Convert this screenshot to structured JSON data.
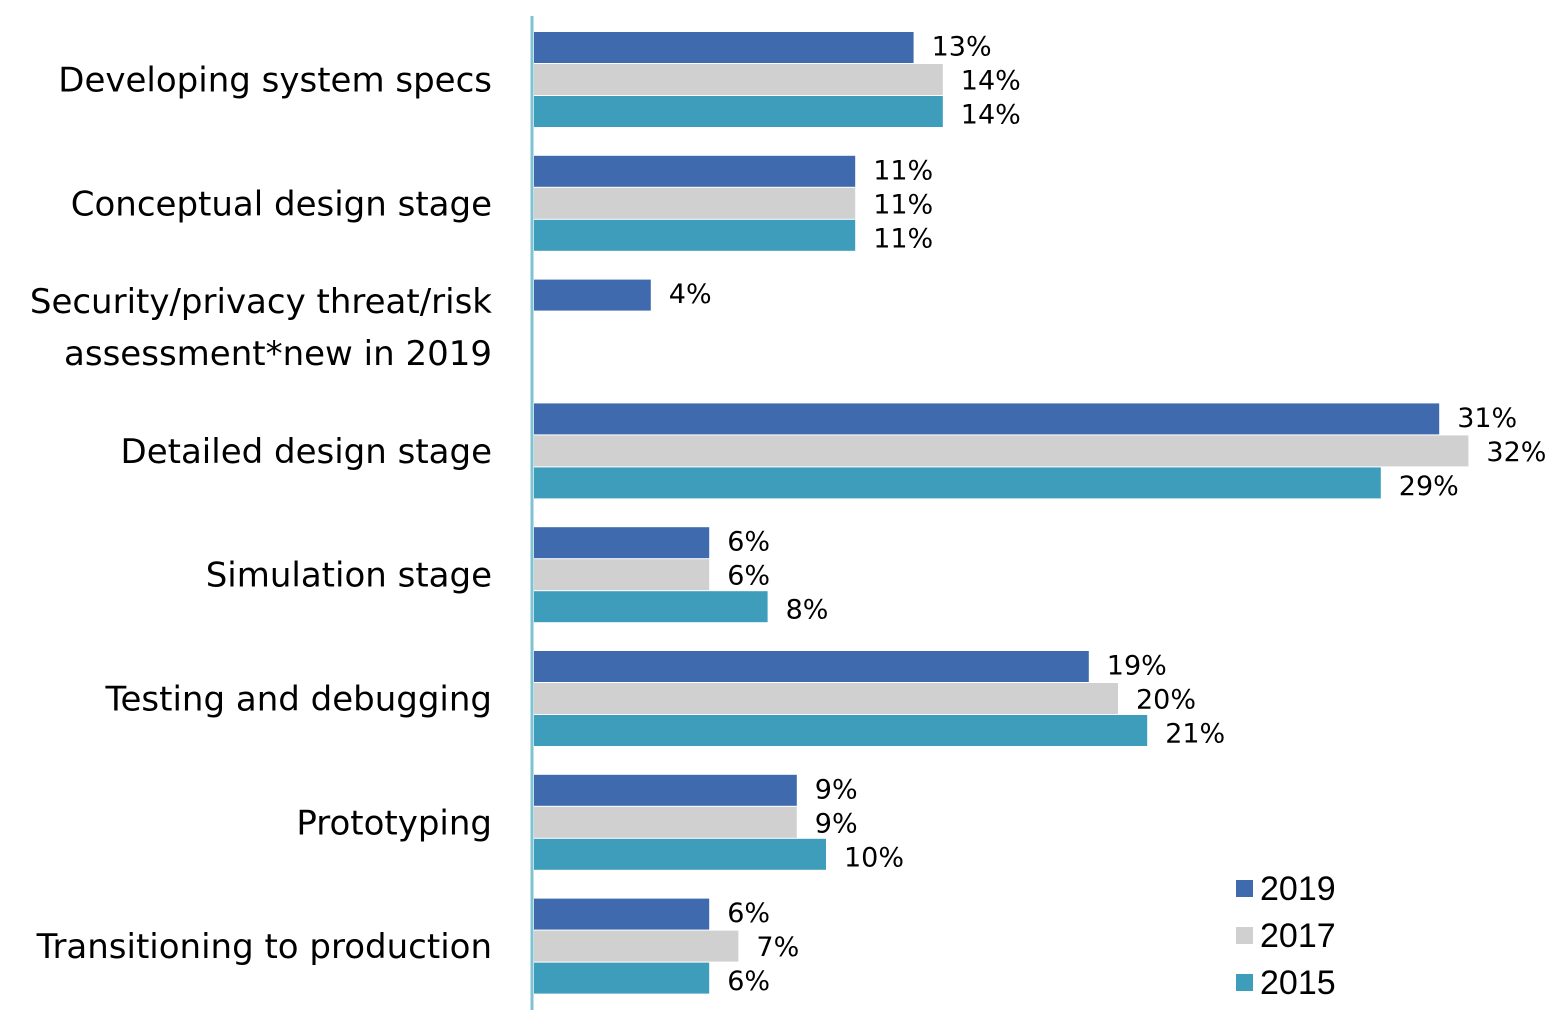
{
  "chart_data": {
    "type": "bar",
    "orientation": "horizontal",
    "categories": [
      "Developing system specs",
      "Conceptual design stage",
      "Security/privacy threat/risk assessment*new in 2019",
      "Detailed design stage",
      "Simulation stage",
      "Testing and debugging",
      "Prototyping",
      "Transitioning to production"
    ],
    "category_lines": [
      [
        "Developing system specs"
      ],
      [
        "Conceptual design stage"
      ],
      [
        "Security/privacy threat/risk",
        "assessment*new in 2019"
      ],
      [
        "Detailed design stage"
      ],
      [
        "Simulation stage"
      ],
      [
        "Testing and debugging"
      ],
      [
        "Prototyping"
      ],
      [
        "Transitioning to production"
      ]
    ],
    "series": [
      {
        "name": "2019",
        "color": "#3F6AAE",
        "values": [
          13,
          11,
          4,
          31,
          6,
          19,
          9,
          6
        ]
      },
      {
        "name": "2017",
        "color": "#D0D0D0",
        "values": [
          14,
          11,
          null,
          32,
          6,
          20,
          9,
          7
        ]
      },
      {
        "name": "2015",
        "color": "#3D9DBB",
        "values": [
          14,
          11,
          null,
          29,
          8,
          21,
          10,
          6
        ]
      }
    ],
    "value_suffix": "%",
    "xlim": [
      0,
      32
    ],
    "grid": false,
    "axis_color": "#7FC3D3",
    "legend_position": "bottom-right",
    "title": "",
    "xlabel": "",
    "ylabel": ""
  }
}
